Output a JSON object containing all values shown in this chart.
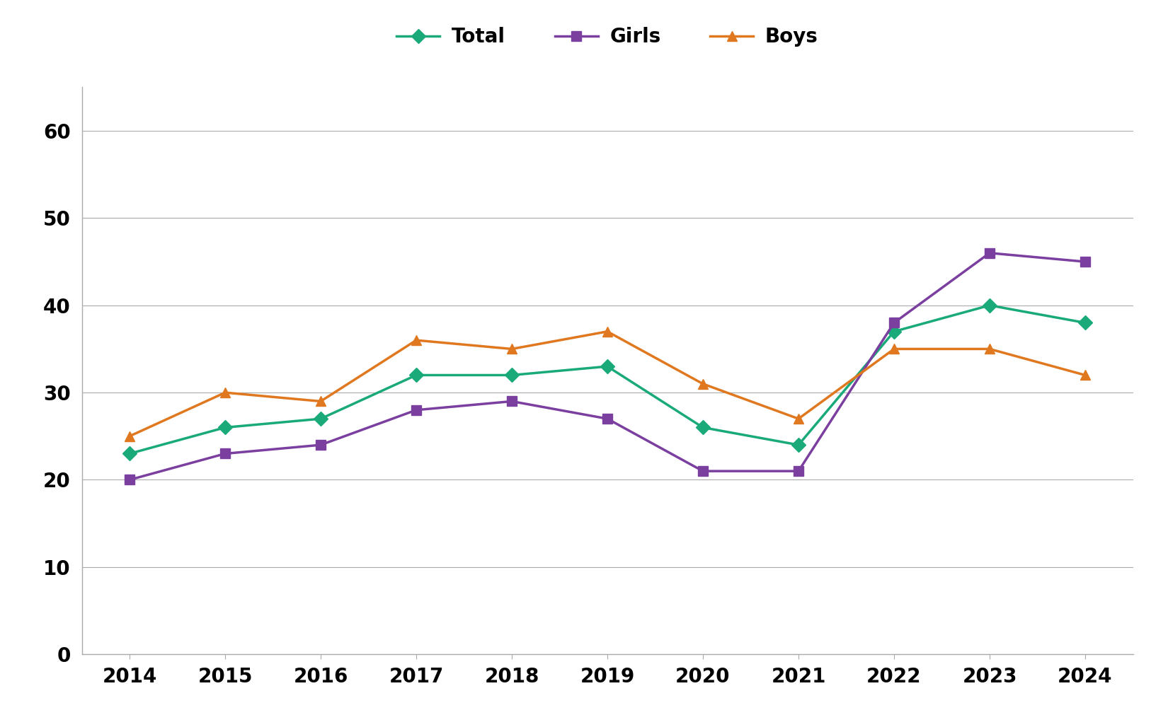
{
  "years": [
    2014,
    2015,
    2016,
    2017,
    2018,
    2019,
    2020,
    2021,
    2022,
    2023,
    2024
  ],
  "total": [
    23,
    26,
    27,
    32,
    32,
    33,
    26,
    24,
    37,
    40,
    38
  ],
  "girls": [
    20,
    23,
    24,
    28,
    29,
    27,
    21,
    21,
    38,
    46,
    45
  ],
  "boys": [
    25,
    30,
    29,
    36,
    35,
    37,
    31,
    27,
    35,
    35,
    32
  ],
  "total_color": "#1aaa7a",
  "girls_color": "#7b3fa0",
  "boys_color": "#e07820",
  "line_width": 2.5,
  "marker_size": 10,
  "legend_labels": [
    "Total",
    "Girls",
    "Boys"
  ],
  "ylim": [
    0,
    65
  ],
  "yticks": [
    0,
    10,
    20,
    30,
    40,
    50,
    60
  ],
  "background_color": "#ffffff",
  "grid_color": "#aaaaaa",
  "tick_fontsize": 20,
  "legend_fontsize": 20,
  "total_marker": "D",
  "girls_marker": "s",
  "boys_marker": "^"
}
